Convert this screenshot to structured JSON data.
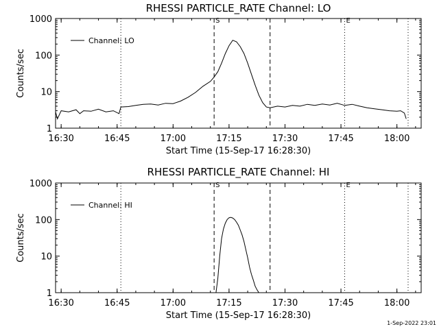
{
  "footer": {
    "timestamp": "1-Sep-2022 23:01"
  },
  "chart_data": [
    {
      "type": "line",
      "title": "RHESSI PARTICLE_RATE Channel: LO",
      "xlabel": "Start Time (15-Sep-17 16:28:30)",
      "ylabel": "Counts/sec",
      "yscale": "log",
      "xlim": [
        "16:28:30",
        "18:06:30"
      ],
      "ylim": [
        1,
        1000
      ],
      "x_ticks": [
        "16:30",
        "16:45",
        "17:00",
        "17:15",
        "17:30",
        "17:45",
        "18:00"
      ],
      "y_ticks": [
        "1",
        "10",
        "100",
        "1000"
      ],
      "legend": {
        "position": "top-left",
        "entries": [
          "Channel: LO"
        ]
      },
      "markers": [
        {
          "label": "",
          "time": "16:28:30",
          "style": "dotted"
        },
        {
          "label": "",
          "time": "16:46:00",
          "style": "dotted"
        },
        {
          "label": "S",
          "time": "17:11:00",
          "style": "dashed"
        },
        {
          "label": "",
          "time": "17:26:00",
          "style": "dashed"
        },
        {
          "label": "E",
          "time": "17:46:00",
          "style": "dotted"
        },
        {
          "label": "",
          "time": "18:03:00",
          "style": "dotted"
        }
      ],
      "series": [
        {
          "name": "Channel: LO",
          "x": [
            "16:28:30",
            "16:29:00",
            "16:30:00",
            "16:32:00",
            "16:34:00",
            "16:35:00",
            "16:36:00",
            "16:38:00",
            "16:40:00",
            "16:42:00",
            "16:44:00",
            "16:45:30",
            "16:46:00",
            "16:48:00",
            "16:50:00",
            "16:52:00",
            "16:54:00",
            "16:56:00",
            "16:58:00",
            "17:00:00",
            "17:02:00",
            "17:04:00",
            "17:06:00",
            "17:08:00",
            "17:10:00",
            "17:11:00",
            "17:12:00",
            "17:13:00",
            "17:14:00",
            "17:15:00",
            "17:16:00",
            "17:17:00",
            "17:18:00",
            "17:19:00",
            "17:20:00",
            "17:21:00",
            "17:22:00",
            "17:23:00",
            "17:24:00",
            "17:25:00",
            "17:26:00",
            "17:28:00",
            "17:30:00",
            "17:32:00",
            "17:34:00",
            "17:36:00",
            "17:38:00",
            "17:40:00",
            "17:42:00",
            "17:44:00",
            "17:46:00",
            "17:48:00",
            "17:50:00",
            "17:52:00",
            "17:54:00",
            "17:56:00",
            "17:58:00",
            "18:00:00",
            "18:01:00",
            "18:02:00",
            "18:02:30"
          ],
          "y": [
            2.8,
            1.8,
            3.0,
            2.8,
            3.2,
            2.5,
            3.0,
            2.9,
            3.3,
            2.8,
            3.0,
            2.5,
            3.8,
            3.9,
            4.2,
            4.5,
            4.6,
            4.3,
            4.8,
            4.7,
            5.5,
            7.0,
            9.5,
            14,
            19,
            25,
            35,
            60,
            110,
            180,
            255,
            230,
            170,
            110,
            60,
            30,
            15,
            8,
            5,
            3.8,
            3.6,
            4.0,
            3.8,
            4.2,
            4.0,
            4.5,
            4.2,
            4.6,
            4.3,
            4.8,
            4.2,
            4.5,
            4.0,
            3.6,
            3.4,
            3.2,
            3.0,
            2.9,
            3.0,
            2.6,
            1.8
          ]
        }
      ]
    },
    {
      "type": "line",
      "title": "RHESSI PARTICLE_RATE Channel: HI",
      "xlabel": "Start Time (15-Sep-17 16:28:30)",
      "ylabel": "Counts/sec",
      "yscale": "log",
      "xlim": [
        "16:28:30",
        "18:06:30"
      ],
      "ylim": [
        1,
        1000
      ],
      "x_ticks": [
        "16:30",
        "16:45",
        "17:00",
        "17:15",
        "17:30",
        "17:45",
        "18:00"
      ],
      "y_ticks": [
        "1",
        "10",
        "100",
        "1000"
      ],
      "legend": {
        "position": "top-left",
        "entries": [
          "Channel: HI"
        ]
      },
      "markers": [
        {
          "label": "",
          "time": "16:28:30",
          "style": "dotted"
        },
        {
          "label": "",
          "time": "16:46:00",
          "style": "dotted"
        },
        {
          "label": "S",
          "time": "17:11:00",
          "style": "dashed"
        },
        {
          "label": "",
          "time": "17:26:00",
          "style": "dashed"
        },
        {
          "label": "E",
          "time": "17:46:00",
          "style": "dotted"
        },
        {
          "label": "",
          "time": "18:03:00",
          "style": "dotted"
        }
      ],
      "series": [
        {
          "name": "Channel: HI",
          "x": [
            "17:11:30",
            "17:12:00",
            "17:12:30",
            "17:13:00",
            "17:13:30",
            "17:14:00",
            "17:14:30",
            "17:15:00",
            "17:15:30",
            "17:16:00",
            "17:16:30",
            "17:17:00",
            "17:17:30",
            "17:18:00",
            "17:18:30",
            "17:19:00",
            "17:19:30",
            "17:20:00",
            "17:20:30",
            "17:21:00",
            "17:21:30",
            "17:22:00",
            "17:22:30",
            "17:23:00"
          ],
          "y": [
            1.0,
            2.5,
            10,
            30,
            55,
            80,
            100,
            112,
            115,
            110,
            100,
            85,
            70,
            52,
            38,
            25,
            15,
            9,
            5,
            3.2,
            2.2,
            1.5,
            1.2,
            1.0
          ]
        }
      ]
    }
  ]
}
